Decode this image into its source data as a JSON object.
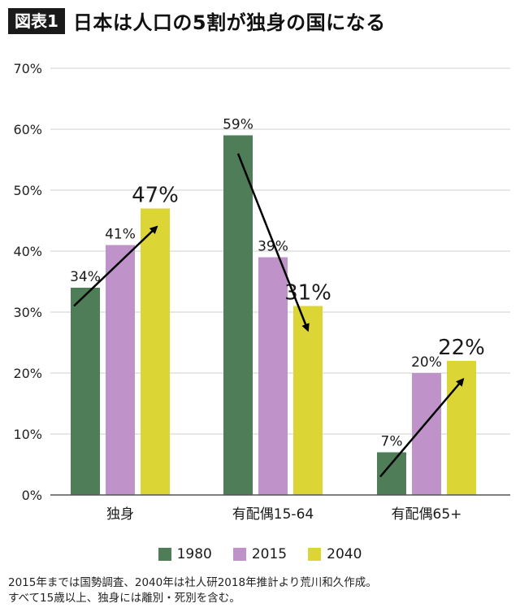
{
  "header": {
    "tag": "図表1",
    "title": "日本は人口の5割が独身の国になる"
  },
  "colors": {
    "1980": "#4e7d58",
    "2015": "#bf93c9",
    "2040": "#dcd536",
    "axis": "#555555",
    "grid": "#cfcfcf",
    "arrow": "#000000"
  },
  "chart_data": {
    "type": "bar",
    "categories": [
      "独身",
      "有配偶15-64",
      "有配偶65+"
    ],
    "series": [
      {
        "name": "1980",
        "values": [
          34,
          59,
          7
        ],
        "labels": [
          "34%",
          "59%",
          "7%"
        ]
      },
      {
        "name": "2015",
        "values": [
          41,
          39,
          20
        ],
        "labels": [
          "41%",
          "39%",
          "20%"
        ]
      },
      {
        "name": "2040",
        "values": [
          47,
          31,
          22
        ],
        "labels": [
          "47%",
          "31%",
          "22%"
        ]
      }
    ],
    "ylim": [
      0,
      70
    ],
    "yticks": [
      "0%",
      "10%",
      "20%",
      "30%",
      "40%",
      "50%",
      "60%",
      "70%"
    ],
    "grid": true,
    "legend_position": "bottom",
    "annotations": "arrows from 1980 bar to 2040 bar in each group"
  },
  "legend": {
    "items": [
      {
        "label": "1980"
      },
      {
        "label": "2015"
      },
      {
        "label": "2040"
      }
    ]
  },
  "notes": {
    "line1": "2015年までは国勢調査、2040年は社人研2018年推計より荒川和久作成。",
    "line2": "すべて15歳以上、独身には離別・死別を含む。"
  }
}
